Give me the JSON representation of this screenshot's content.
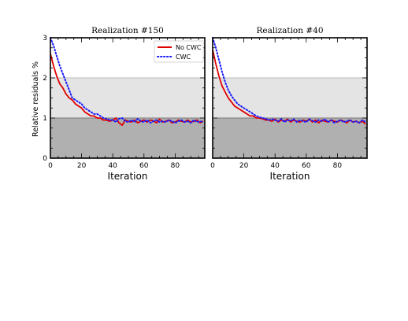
{
  "figure": {
    "ylabel": "Relative residuals %",
    "legend_position": "top-right of first panel"
  },
  "chart_data": [
    {
      "type": "line",
      "title": "Realization #150",
      "xlabel": "Iteration",
      "ylabel": "Relative residuals %",
      "xlim": [
        0,
        99
      ],
      "ylim": [
        0,
        3
      ],
      "xticks": [
        0,
        20,
        40,
        60,
        80
      ],
      "yticks": [
        0,
        1,
        2,
        3
      ],
      "bands": [
        {
          "from": 0,
          "to": 1,
          "color": "#b0b0b0"
        },
        {
          "from": 1,
          "to": 2,
          "color": "#e4e4e4"
        }
      ],
      "legend": {
        "position": "top-right",
        "entries": [
          "No CWC",
          "CWC"
        ]
      },
      "series": [
        {
          "name": "No CWC",
          "color": "#e00000",
          "style": "solid",
          "x": [
            0,
            2,
            4,
            6,
            8,
            10,
            12,
            14,
            16,
            18,
            20,
            22,
            24,
            26,
            28,
            30,
            32,
            34,
            36,
            38,
            40,
            42,
            44,
            46,
            48,
            50,
            52,
            54,
            56,
            58,
            60,
            62,
            64,
            66,
            68,
            70,
            72,
            74,
            76,
            78,
            80,
            82,
            84,
            86,
            88,
            90,
            92,
            94,
            96,
            98
          ],
          "y": [
            2.6,
            2.3,
            2.05,
            1.85,
            1.75,
            1.6,
            1.5,
            1.45,
            1.35,
            1.3,
            1.25,
            1.15,
            1.1,
            1.05,
            1.05,
            1.0,
            1.0,
            0.95,
            0.95,
            0.92,
            0.95,
            1.0,
            0.88,
            0.82,
            0.95,
            0.92,
            0.9,
            0.95,
            0.88,
            0.92,
            0.95,
            0.9,
            0.95,
            0.93,
            0.88,
            0.97,
            0.9,
            0.92,
            0.95,
            0.88,
            0.9,
            0.95,
            0.92,
            0.9,
            0.95,
            0.9,
            0.92,
            0.95,
            0.88,
            0.92
          ]
        },
        {
          "name": "CWC",
          "color": "#1a1aff",
          "style": "dotted",
          "x": [
            0,
            2,
            4,
            6,
            8,
            10,
            12,
            14,
            16,
            18,
            20,
            22,
            24,
            26,
            28,
            30,
            32,
            34,
            36,
            38,
            40,
            42,
            44,
            46,
            48,
            50,
            52,
            54,
            56,
            58,
            60,
            62,
            64,
            66,
            68,
            70,
            72,
            74,
            76,
            78,
            80,
            82,
            84,
            86,
            88,
            90,
            92,
            94,
            96,
            98
          ],
          "y": [
            3.0,
            2.8,
            2.55,
            2.3,
            2.1,
            1.9,
            1.7,
            1.5,
            1.45,
            1.4,
            1.35,
            1.25,
            1.2,
            1.15,
            1.1,
            1.1,
            1.05,
            1.0,
            0.98,
            0.95,
            0.95,
            0.9,
            0.98,
            1.0,
            0.92,
            0.9,
            0.95,
            0.9,
            0.98,
            0.92,
            0.9,
            0.95,
            0.88,
            0.92,
            0.95,
            0.9,
            0.92,
            0.9,
            0.95,
            0.92,
            0.88,
            0.92,
            0.95,
            0.9,
            0.92,
            0.88,
            0.95,
            0.9,
            0.92,
            0.9
          ]
        }
      ]
    },
    {
      "type": "line",
      "title": "Realization #40",
      "xlabel": "Iteration",
      "ylabel": "",
      "xlim": [
        0,
        99
      ],
      "ylim": [
        0,
        3
      ],
      "xticks": [
        0,
        20,
        40,
        60,
        80
      ],
      "yticks": [
        0,
        1,
        2,
        3
      ],
      "bands": [
        {
          "from": 0,
          "to": 1,
          "color": "#b0b0b0"
        },
        {
          "from": 1,
          "to": 2,
          "color": "#e4e4e4"
        }
      ],
      "series": [
        {
          "name": "No CWC",
          "color": "#e00000",
          "style": "solid",
          "x": [
            0,
            2,
            4,
            6,
            8,
            10,
            12,
            14,
            16,
            18,
            20,
            22,
            24,
            26,
            28,
            30,
            32,
            34,
            36,
            38,
            40,
            42,
            44,
            46,
            48,
            50,
            52,
            54,
            56,
            58,
            60,
            62,
            64,
            66,
            68,
            70,
            72,
            74,
            76,
            78,
            80,
            82,
            84,
            86,
            88,
            90,
            92,
            94,
            96,
            98
          ],
          "y": [
            2.7,
            2.35,
            2.05,
            1.8,
            1.65,
            1.5,
            1.4,
            1.3,
            1.25,
            1.2,
            1.15,
            1.1,
            1.05,
            1.05,
            1.0,
            1.0,
            0.98,
            0.95,
            0.95,
            0.92,
            0.97,
            0.9,
            0.95,
            0.92,
            0.97,
            0.9,
            0.95,
            0.92,
            0.9,
            0.95,
            0.92,
            0.97,
            0.9,
            0.95,
            0.88,
            0.95,
            0.92,
            0.9,
            0.95,
            0.92,
            0.9,
            0.95,
            0.92,
            0.88,
            0.95,
            0.9,
            0.92,
            0.88,
            0.92,
            0.85
          ]
        },
        {
          "name": "CWC",
          "color": "#1a1aff",
          "style": "dotted",
          "x": [
            0,
            2,
            4,
            6,
            8,
            10,
            12,
            14,
            16,
            18,
            20,
            22,
            24,
            26,
            28,
            30,
            32,
            34,
            36,
            38,
            40,
            42,
            44,
            46,
            48,
            50,
            52,
            54,
            56,
            58,
            60,
            62,
            64,
            66,
            68,
            70,
            72,
            74,
            76,
            78,
            80,
            82,
            84,
            86,
            88,
            90,
            92,
            94,
            96,
            98
          ],
          "y": [
            3.0,
            2.75,
            2.45,
            2.15,
            1.9,
            1.7,
            1.55,
            1.45,
            1.35,
            1.3,
            1.25,
            1.2,
            1.15,
            1.1,
            1.05,
            1.02,
            1.0,
            0.98,
            0.95,
            0.97,
            0.95,
            0.92,
            0.98,
            0.9,
            0.95,
            0.93,
            0.97,
            0.9,
            0.95,
            0.92,
            0.9,
            0.97,
            0.93,
            0.9,
            0.95,
            0.92,
            0.97,
            0.9,
            0.95,
            0.88,
            0.92,
            0.95,
            0.9,
            0.92,
            0.95,
            0.9,
            0.92,
            0.88,
            0.95,
            0.9
          ]
        }
      ]
    }
  ]
}
